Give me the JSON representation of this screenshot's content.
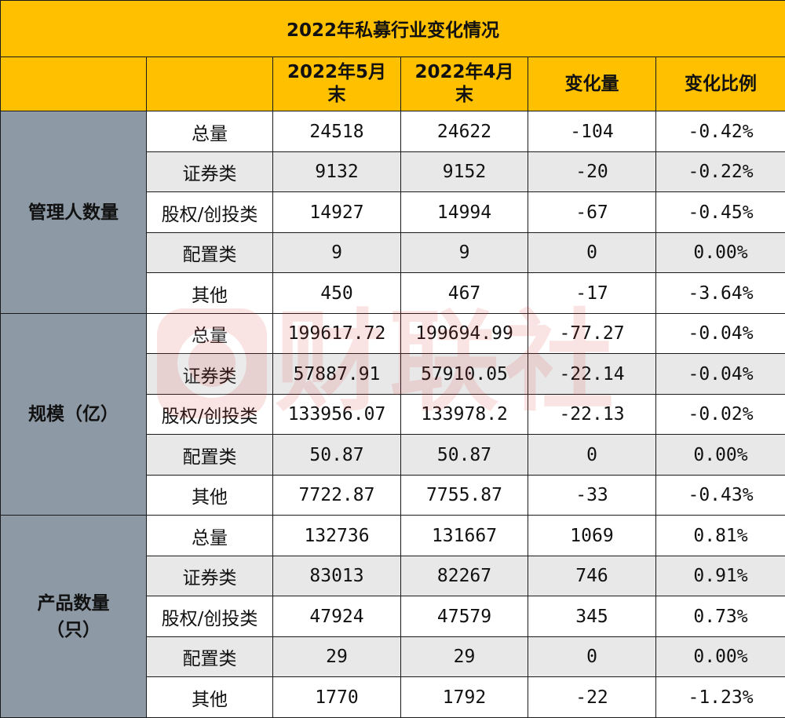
{
  "title": "2022年私募行业变化情况",
  "headers": {
    "may_line1": "2022年5月",
    "may_line2": "末",
    "apr_line1": "2022年4月",
    "apr_line2": "末",
    "change": "变化量",
    "ratio": "变化比例"
  },
  "groups": [
    {
      "name": "管理人数量",
      "name_line2": "",
      "rows": [
        {
          "label": "总量",
          "may": "24518",
          "apr": "24622",
          "change": "-104",
          "ratio": "-0.42%"
        },
        {
          "label": "证券类",
          "may": "9132",
          "apr": "9152",
          "change": "-20",
          "ratio": "-0.22%"
        },
        {
          "label": "股权/创投类",
          "may": "14927",
          "apr": "14994",
          "change": "-67",
          "ratio": "-0.45%"
        },
        {
          "label": "配置类",
          "may": "9",
          "apr": "9",
          "change": "0",
          "ratio": "0.00%"
        },
        {
          "label": "其他",
          "may": "450",
          "apr": "467",
          "change": "-17",
          "ratio": "-3.64%"
        }
      ]
    },
    {
      "name": "规模（亿）",
      "name_line2": "",
      "rows": [
        {
          "label": "总量",
          "may": "199617.72",
          "apr": "199694.99",
          "change": "-77.27",
          "ratio": "-0.04%"
        },
        {
          "label": "证券类",
          "may": "57887.91",
          "apr": "57910.05",
          "change": "-22.14",
          "ratio": "-0.04%"
        },
        {
          "label": "股权/创投类",
          "may": "133956.07",
          "apr": "133978.2",
          "change": "-22.13",
          "ratio": "-0.02%"
        },
        {
          "label": "配置类",
          "may": "50.87",
          "apr": "50.87",
          "change": "0",
          "ratio": "0.00%"
        },
        {
          "label": "其他",
          "may": "7722.87",
          "apr": "7755.87",
          "change": "-33",
          "ratio": "-0.43%"
        }
      ]
    },
    {
      "name": "产品数量",
      "name_line2": "（只）",
      "rows": [
        {
          "label": "总量",
          "may": "132736",
          "apr": "131667",
          "change": "1069",
          "ratio": "0.81%"
        },
        {
          "label": "证券类",
          "may": "83013",
          "apr": "82267",
          "change": "746",
          "ratio": "0.91%"
        },
        {
          "label": "股权/创投类",
          "may": "47924",
          "apr": "47579",
          "change": "345",
          "ratio": "0.73%"
        },
        {
          "label": "配置类",
          "may": "29",
          "apr": "29",
          "change": "0",
          "ratio": "0.00%"
        },
        {
          "label": "其他",
          "may": "1770",
          "apr": "1792",
          "change": "-22",
          "ratio": "-1.23%"
        }
      ]
    }
  ],
  "colors": {
    "header_bg": "#ffc000",
    "group_bg": "#8d99a4",
    "stripe_bg": "#e8e8e9",
    "positive_text": "#ff1a1a",
    "negative_text": "#18a33c"
  },
  "watermark": {
    "logo": "cailian-logo-icon",
    "text": "财联社"
  }
}
